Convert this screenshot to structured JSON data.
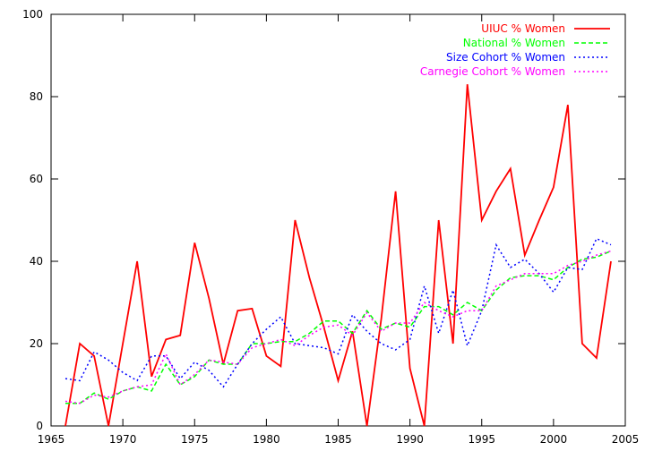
{
  "chart_data": {
    "type": "line",
    "title": "",
    "xlabel": "",
    "ylabel": "",
    "xlim": [
      1965,
      2005
    ],
    "ylim": [
      0,
      100
    ],
    "xticks": [
      1965,
      1970,
      1975,
      1980,
      1985,
      1990,
      1995,
      2000,
      2005
    ],
    "yticks": [
      0,
      20,
      40,
      60,
      80,
      100
    ],
    "legend_position": "top-right",
    "grid": false,
    "series": [
      {
        "name": "UIUC % Women",
        "color": "#ff0000",
        "dash": "solid",
        "x": [
          1966,
          1967,
          1968,
          1969,
          1970,
          1971,
          1972,
          1973,
          1974,
          1975,
          1976,
          1977,
          1978,
          1979,
          1980,
          1981,
          1982,
          1983,
          1984,
          1985,
          1986,
          1987,
          1988,
          1989,
          1990,
          1991,
          1992,
          1993,
          1994,
          1995,
          1996,
          1997,
          1998,
          1999,
          2000,
          2001,
          2002,
          2003,
          2004
        ],
        "y": [
          0,
          20,
          17,
          0,
          20,
          40,
          12,
          21,
          22,
          44.5,
          31,
          15,
          28,
          28.5,
          17,
          14.5,
          50,
          36,
          24,
          11,
          23,
          0,
          26,
          57,
          14,
          0,
          50,
          20,
          83,
          50,
          57,
          62.5,
          41.5,
          50,
          58,
          78,
          20,
          16.5,
          40
        ]
      },
      {
        "name": "National % Women",
        "color": "#00ff00",
        "dash": "dashed",
        "x": [
          1966,
          1967,
          1968,
          1969,
          1970,
          1971,
          1972,
          1973,
          1974,
          1975,
          1976,
          1977,
          1978,
          1979,
          1980,
          1981,
          1982,
          1983,
          1984,
          1985,
          1986,
          1987,
          1988,
          1989,
          1990,
          1991,
          1992,
          1993,
          1994,
          1995,
          1996,
          1997,
          1998,
          1999,
          2000,
          2001,
          2002,
          2003,
          2004
        ],
        "y": [
          5.5,
          5.5,
          8,
          6.5,
          8.5,
          9.5,
          8.5,
          15,
          10,
          12,
          16,
          15,
          15,
          20,
          20,
          20.5,
          20.5,
          22.5,
          25.5,
          25.5,
          22.5,
          28,
          23.5,
          25,
          24,
          29,
          29,
          27,
          30,
          28,
          33,
          36,
          36.5,
          36.5,
          35.5,
          38.5,
          40.5,
          41,
          42.5
        ]
      },
      {
        "name": "Size Cohort % Women",
        "color": "#0000ff",
        "dash": "dotted",
        "x": [
          1966,
          1967,
          1968,
          1969,
          1970,
          1971,
          1972,
          1973,
          1974,
          1975,
          1976,
          1977,
          1978,
          1979,
          1980,
          1981,
          1982,
          1983,
          1984,
          1985,
          1986,
          1987,
          1988,
          1989,
          1990,
          1991,
          1992,
          1993,
          1994,
          1995,
          1996,
          1997,
          1998,
          1999,
          2000,
          2001,
          2002,
          2003,
          2004
        ],
        "y": [
          11.5,
          11,
          18,
          16,
          13,
          11,
          17,
          17,
          11.5,
          15.5,
          13.5,
          9.5,
          15,
          20,
          23.5,
          26.5,
          20,
          19.5,
          19,
          17.5,
          27,
          23,
          20,
          18.5,
          21,
          34,
          22.5,
          33,
          19.5,
          28,
          44,
          38.5,
          40.5,
          37,
          32.5,
          38.5,
          38,
          45.5,
          44
        ]
      },
      {
        "name": "Carnegie Cohort % Women",
        "color": "#ff00ff",
        "dash": "dotted",
        "x": [
          1966,
          1967,
          1968,
          1969,
          1970,
          1971,
          1972,
          1973,
          1974,
          1975,
          1976,
          1977,
          1978,
          1979,
          1980,
          1981,
          1982,
          1983,
          1984,
          1985,
          1986,
          1987,
          1988,
          1989,
          1990,
          1991,
          1992,
          1993,
          1994,
          1995,
          1996,
          1997,
          1998,
          1999,
          2000,
          2001,
          2002,
          2003,
          2004
        ],
        "y": [
          6,
          5.5,
          7.5,
          7,
          8.5,
          9.5,
          10,
          17.5,
          10,
          12.5,
          16,
          15.5,
          15,
          19,
          20,
          21,
          19.5,
          22,
          24,
          24.5,
          22,
          27.5,
          23,
          25,
          25,
          30,
          28,
          26.5,
          28,
          28,
          34,
          35.5,
          37,
          37,
          37,
          39,
          40,
          41.5,
          42.5
        ]
      }
    ]
  }
}
